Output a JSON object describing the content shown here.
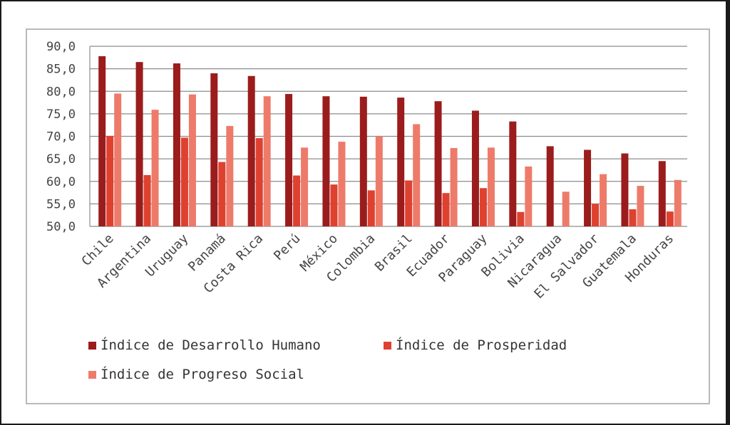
{
  "chart_data": {
    "type": "bar",
    "title": "",
    "xlabel": "",
    "ylabel": "",
    "ylim": [
      50,
      90
    ],
    "y_ticks": [
      "90,0",
      "85,0",
      "80,0",
      "75,0",
      "70,0",
      "65,0",
      "60,0",
      "55,0",
      "50,0"
    ],
    "grid": true,
    "legend_position": "bottom",
    "categories": [
      "Chile",
      "Argentina",
      "Uruguay",
      "Panamá",
      "Costa Rica",
      "Perú",
      "México",
      "Colombia",
      "Brasil",
      "Ecuador",
      "Paraguay",
      "Bolivia",
      "Nicaragua",
      "El Salvador",
      "Guatemala",
      "Honduras"
    ],
    "series": [
      {
        "name": "Índice de Desarrollo Humano",
        "color": "#9b1c1c",
        "values": [
          87.8,
          86.5,
          86.2,
          84.0,
          83.4,
          79.4,
          78.9,
          78.8,
          78.6,
          77.8,
          75.7,
          73.3,
          67.8,
          67.0,
          66.2,
          64.5
        ]
      },
      {
        "name": "Índice de Prosperidad",
        "color": "#de4130",
        "values": [
          70.1,
          61.4,
          69.7,
          64.3,
          69.6,
          61.3,
          59.3,
          58.0,
          60.2,
          57.4,
          58.5,
          53.2,
          null,
          55.0,
          53.8,
          53.3
        ]
      },
      {
        "name": "Índice de Progreso Social",
        "color": "#ee7b6a",
        "values": [
          79.5,
          75.9,
          79.3,
          72.3,
          78.9,
          67.5,
          68.8,
          70.0,
          72.7,
          67.4,
          67.5,
          63.3,
          57.7,
          61.6,
          59.0,
          60.3
        ]
      }
    ]
  }
}
